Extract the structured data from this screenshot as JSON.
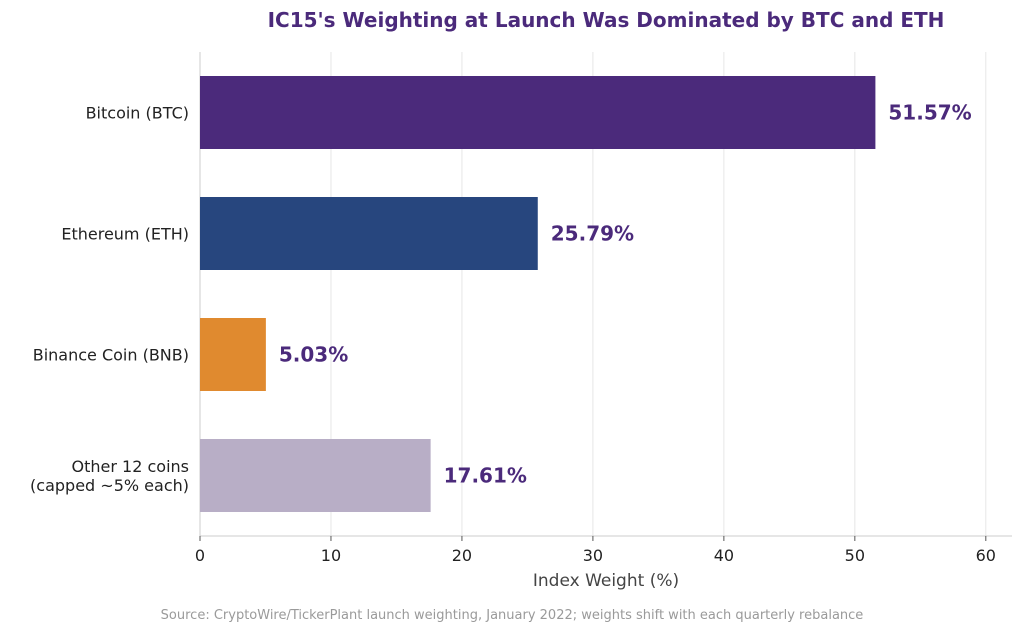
{
  "chart_data": {
    "type": "bar",
    "orientation": "horizontal",
    "title": "IC15's Weighting at Launch Was Dominated by BTC and ETH",
    "xlabel": "Index Weight (%)",
    "ylabel": "",
    "xlim": [
      0,
      62
    ],
    "xticks": [
      0,
      10,
      20,
      30,
      40,
      50,
      60
    ],
    "grid": "vertical",
    "categories": [
      "Bitcoin (BTC)",
      "Ethereum (ETH)",
      "Binance Coin (BNB)",
      "Other 12 coins\n(capped ~5% each)"
    ],
    "values": [
      51.57,
      25.79,
      5.03,
      17.61
    ],
    "value_labels": [
      "51.57%",
      "25.79%",
      "5.03%",
      "17.61%"
    ],
    "colors": [
      "#4b2a7b",
      "#27467e",
      "#e08a2f",
      "#b8aec6"
    ],
    "label_color": "#4b2a7b",
    "source": "Source: CryptoWire/TickerPlant launch weighting, January 2022; weights shift with each quarterly rebalance"
  }
}
